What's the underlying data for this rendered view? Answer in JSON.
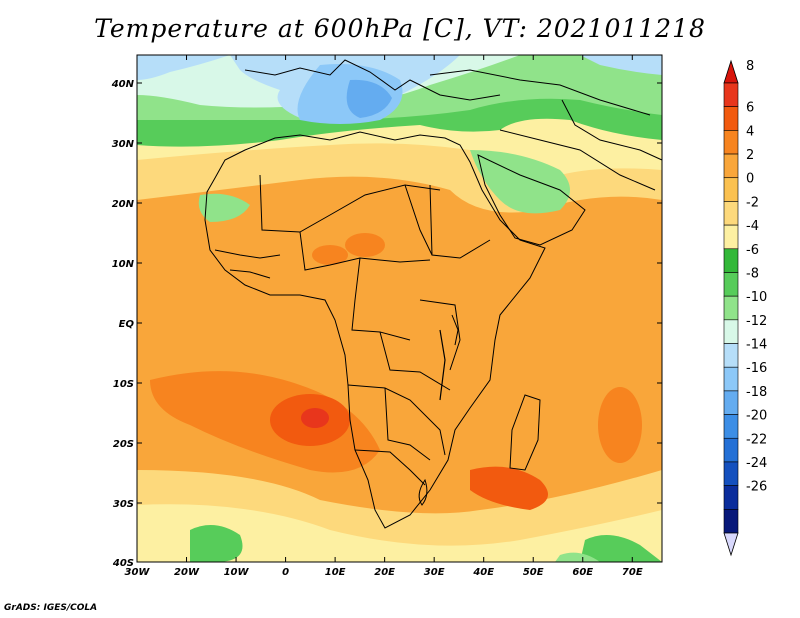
{
  "title": "Temperature at 600hPa [C], VT: 2021011218",
  "credit": "GrADS: IGES/COLA",
  "map": {
    "lon_ticks": [
      "30W",
      "20W",
      "10W",
      "0",
      "10E",
      "20E",
      "30E",
      "40E",
      "50E",
      "60E",
      "70E"
    ],
    "lat_ticks": [
      "40N",
      "30N",
      "20N",
      "10N",
      "EQ",
      "10S",
      "20S",
      "30S",
      "40S"
    ]
  },
  "colorbar": {
    "labels": [
      "8",
      "6",
      "4",
      "2",
      "0",
      "-2",
      "-4",
      "-6",
      "-8",
      "-10",
      "-12",
      "-14",
      "-16",
      "-18",
      "-20",
      "-22",
      "-24",
      "-26"
    ],
    "colors": [
      "#e8361c",
      "#f25a0f",
      "#f7841f",
      "#f9a63a",
      "#fbc150",
      "#fdd97c",
      "#fdf0a2",
      "#33b839",
      "#57cc5a",
      "#90e38a",
      "#d8f8e8",
      "#b6def9",
      "#8cc8f8",
      "#64acf0",
      "#3c8ee6",
      "#2470d6",
      "#1450be",
      "#0b2d9c",
      "#08187a"
    ],
    "arrow_top": "#d8140b",
    "arrow_bottom": "#d8d8fc"
  }
}
